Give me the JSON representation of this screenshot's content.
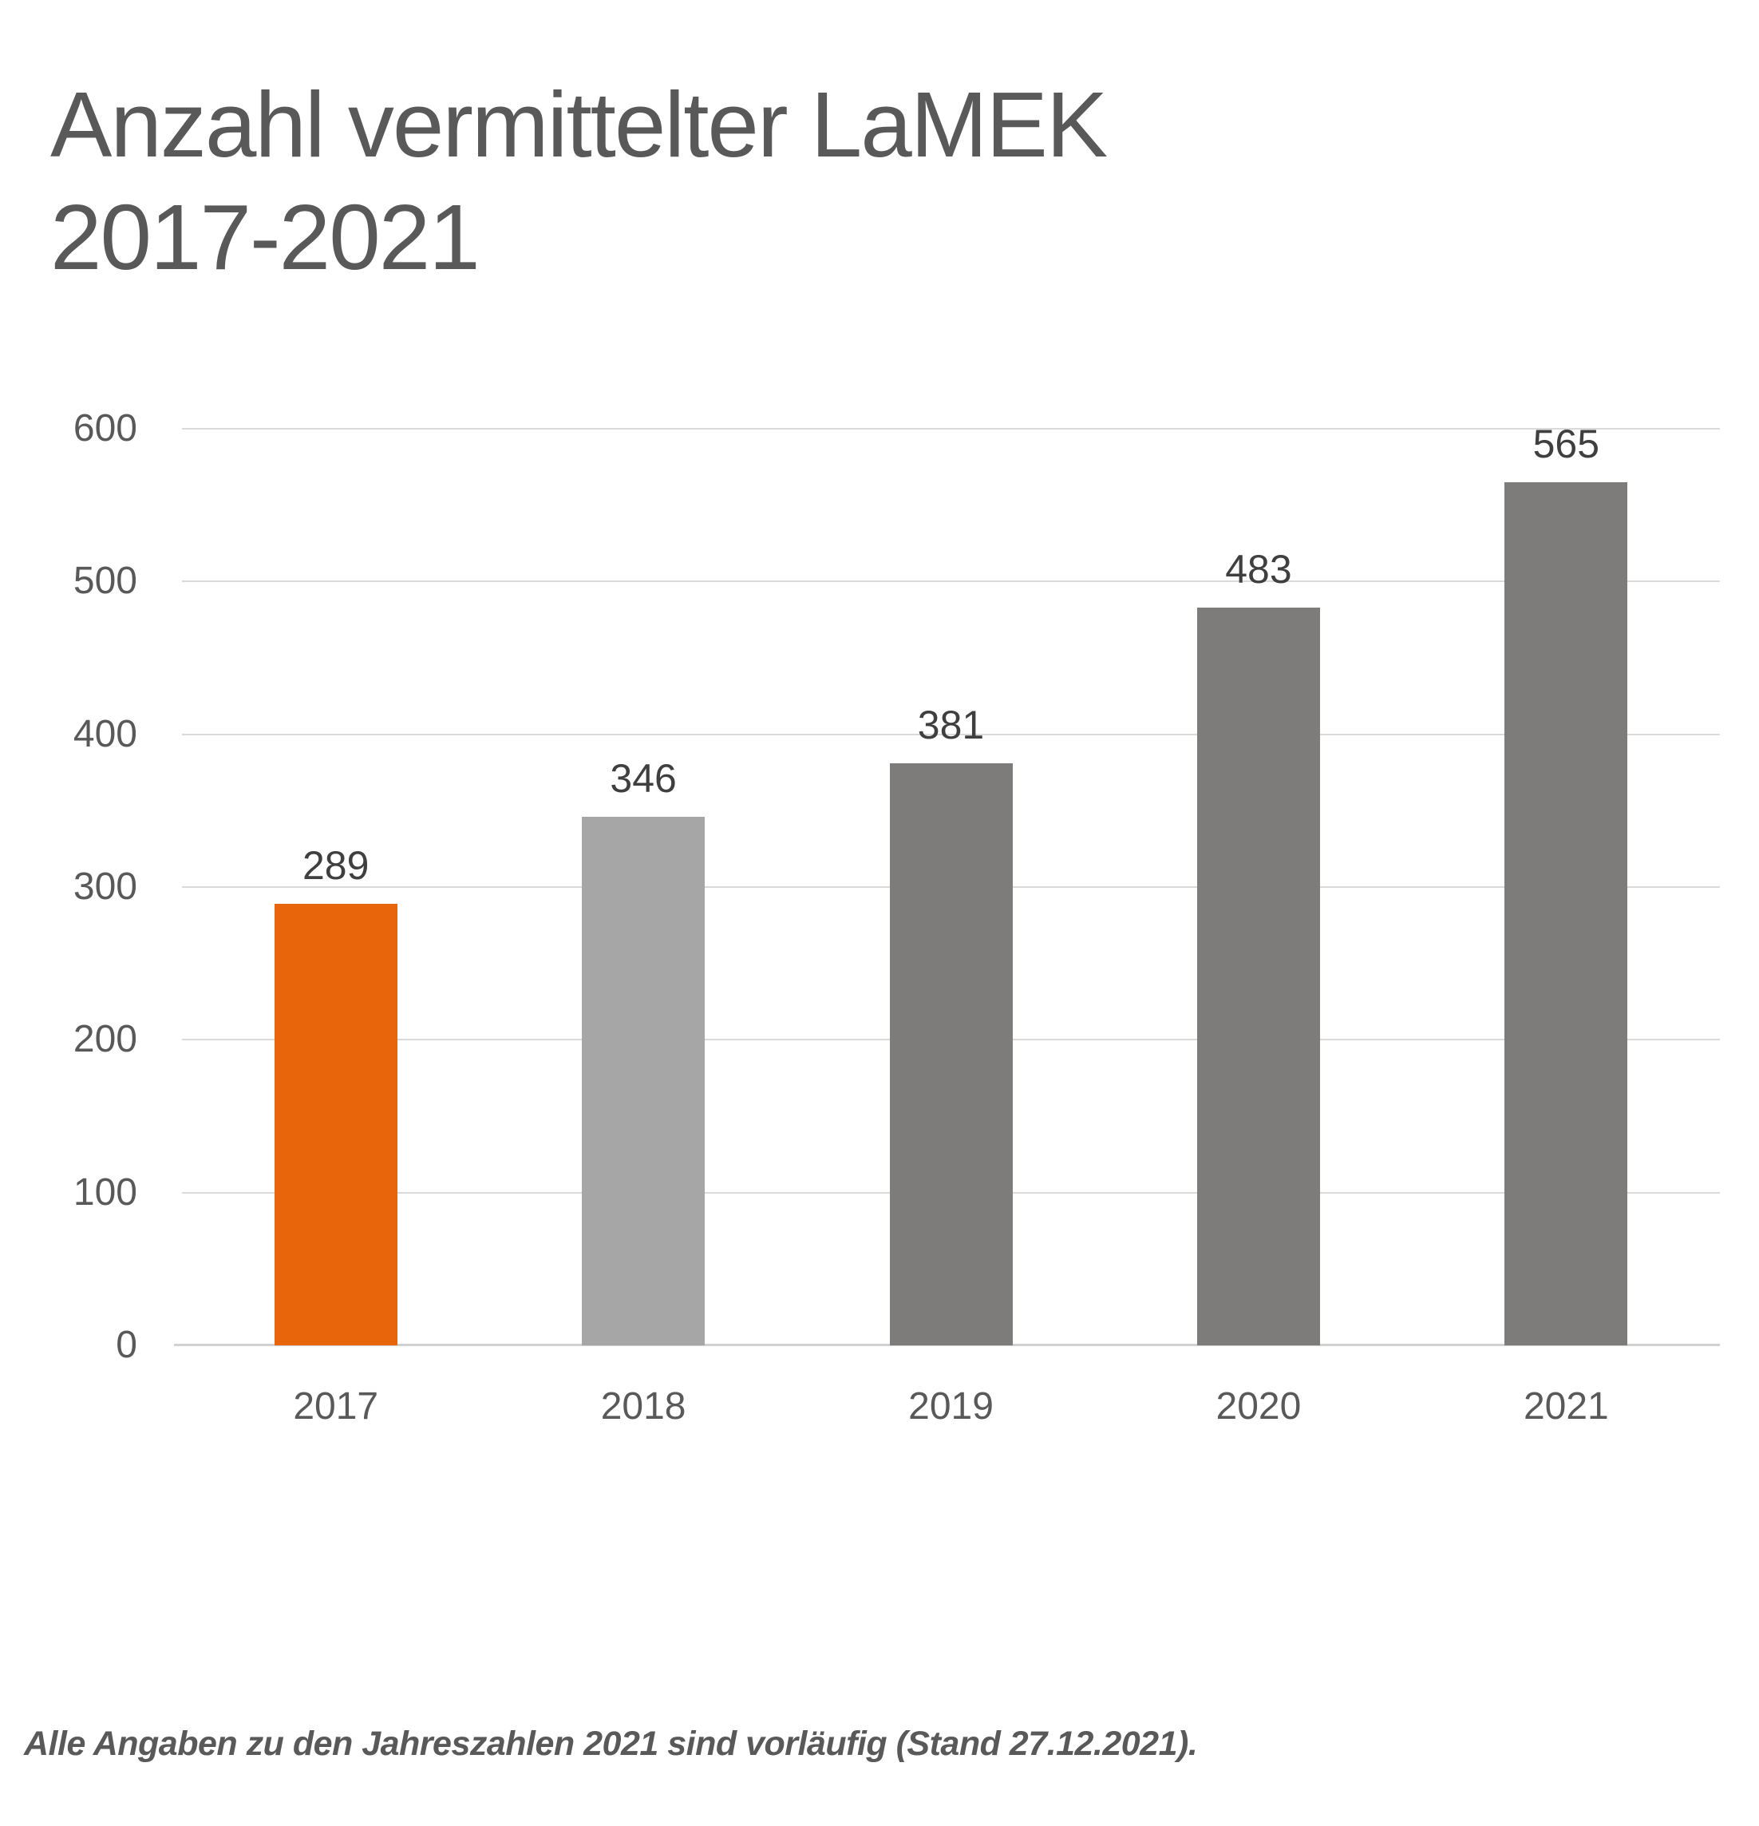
{
  "page": {
    "title_line1": "Anzahl vermittelter LaMEK",
    "title_line2": "2017-2021",
    "footnote": "Alle Angaben zu den Jahreszahlen 2021 sind vorläufig (Stand 27.12.2021)."
  },
  "colors": {
    "background_color": "#ffffff",
    "title_color": "#595959",
    "axis_label_color": "#595959",
    "data_label_color": "#3f3f3f",
    "gridline_color": "#dadada",
    "baseline_color": "#d2d0d0",
    "footnote_color": "#595959",
    "highlight_bar_color": "#e8650c",
    "secondary_bar_color": "#a6a6a6",
    "default_bar_color": "#7e7b7b"
  },
  "chart_data": {
    "type": "bar",
    "title": "Anzahl vermittelter LaMEK 2017-2021",
    "categories": [
      "2017",
      "2018",
      "2019",
      "2020",
      "2021"
    ],
    "values": [
      289,
      346,
      381,
      483,
      565
    ],
    "data_labels": [
      "289",
      "346",
      "381",
      "483",
      "565"
    ],
    "bar_colors": [
      "#e8650c",
      "#a6a6a6",
      "#7e7b7b",
      "#7e7b7b",
      "#7e7b7b"
    ],
    "highlighted_category": "2017",
    "xlabel": "",
    "ylabel": "",
    "ylim": [
      0,
      600
    ],
    "y_ticks": [
      600,
      500,
      400,
      300,
      200,
      100,
      0
    ],
    "grid": "horizontal",
    "legend": "none",
    "annotations": [
      "Alle Angaben zu den Jahreszahlen 2021 sind vorläufig (Stand 27.12.2021)."
    ]
  }
}
